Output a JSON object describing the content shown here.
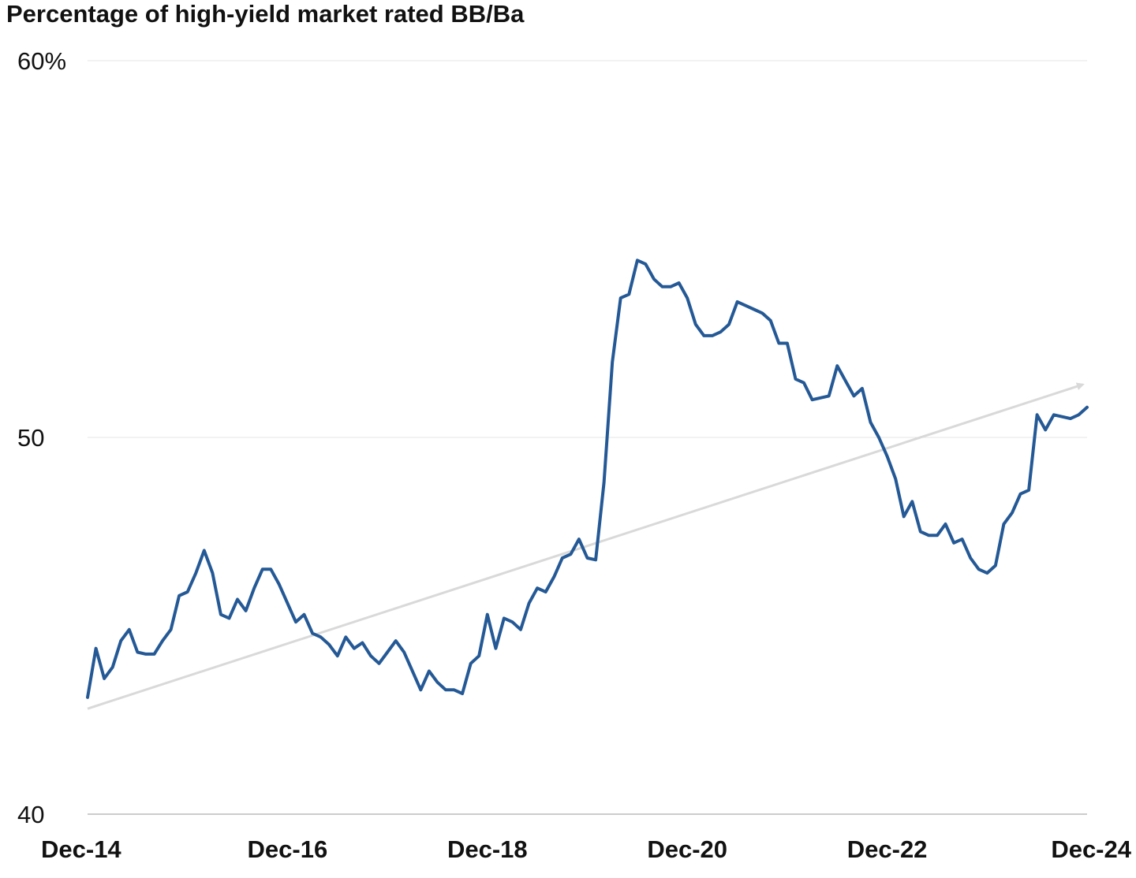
{
  "chart_data": {
    "type": "line",
    "title": "Percentage of high-yield market rated BB/Ba",
    "xlabel": "",
    "ylabel": "",
    "ylim": [
      40,
      60
    ],
    "y_ticks": [
      {
        "value": 60,
        "label": "60%"
      },
      {
        "value": 50,
        "label": "50"
      },
      {
        "value": 40,
        "label": "40"
      }
    ],
    "x_ticks": [
      "Dec-14",
      "Dec-16",
      "Dec-18",
      "Dec-20",
      "Dec-22",
      "Dec-24"
    ],
    "grid": true,
    "colors": {
      "series": "#245996",
      "trend": "#d9d9d9",
      "grid": "#e6e6e6",
      "axis": "#9a9a9a",
      "text": "#111111"
    },
    "series": [
      {
        "type": "monthly",
        "x_start": "Dec-14",
        "x_end": "Dec-24",
        "values": [
          43.1,
          44.4,
          43.6,
          43.9,
          44.6,
          44.9,
          44.3,
          44.25,
          44.25,
          44.6,
          44.9,
          45.8,
          45.9,
          46.4,
          47.0,
          46.4,
          45.3,
          45.2,
          45.7,
          45.4,
          46.0,
          46.5,
          46.5,
          46.1,
          45.6,
          45.1,
          45.3,
          44.8,
          44.7,
          44.5,
          44.2,
          44.7,
          44.4,
          44.55,
          44.2,
          44.0,
          44.3,
          44.6,
          44.3,
          43.8,
          43.3,
          43.8,
          43.5,
          43.3,
          43.3,
          43.2,
          44.0,
          44.2,
          45.3,
          44.4,
          45.2,
          45.1,
          44.9,
          45.6,
          46.0,
          45.9,
          46.3,
          46.8,
          46.9,
          47.3,
          46.8,
          46.75,
          48.8,
          52.0,
          53.7,
          53.8,
          54.7,
          54.6,
          54.2,
          54.0,
          54.0,
          54.1,
          53.7,
          53.0,
          52.7,
          52.7,
          52.8,
          53.0,
          53.6,
          53.5,
          53.4,
          53.3,
          53.1,
          52.5,
          52.5,
          51.55,
          51.45,
          51.0,
          51.05,
          51.1,
          51.9,
          51.5,
          51.1,
          51.3,
          50.4,
          50.0,
          49.5,
          48.9,
          47.9,
          48.3,
          47.5,
          47.4,
          47.4,
          47.7,
          47.2,
          47.3,
          46.8,
          46.5,
          46.4,
          46.6,
          47.7,
          48.0,
          48.5,
          48.6,
          50.6,
          50.2,
          50.6,
          50.55,
          50.5,
          50.6,
          50.8
        ]
      }
    ],
    "trendline": {
      "start": 42.8,
      "end": 51.4
    }
  }
}
